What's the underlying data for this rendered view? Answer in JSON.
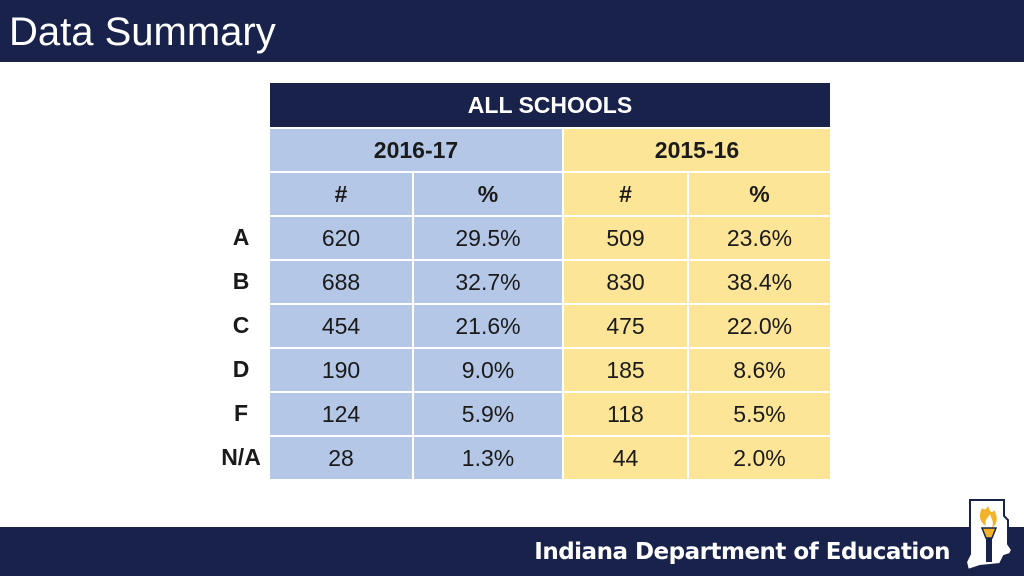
{
  "slide": {
    "title": "Data Summary"
  },
  "table": {
    "header": "ALL SCHOOLS",
    "years": [
      "2016-17",
      "2015-16"
    ],
    "subheaders": [
      "#",
      "%",
      "#",
      "%"
    ],
    "rows": [
      {
        "grade": "A",
        "values": [
          "620",
          "29.5%",
          "509",
          "23.6%"
        ]
      },
      {
        "grade": "B",
        "values": [
          "688",
          "32.7%",
          "830",
          "38.4%"
        ]
      },
      {
        "grade": "C",
        "values": [
          "454",
          "21.6%",
          "475",
          "22.0%"
        ]
      },
      {
        "grade": "D",
        "values": [
          "190",
          "9.0%",
          "185",
          "8.6%"
        ]
      },
      {
        "grade": "F",
        "values": [
          "124",
          "5.9%",
          "118",
          "5.5%"
        ]
      },
      {
        "grade": "N/A",
        "values": [
          "28",
          "1.3%",
          "44",
          "2.0%"
        ]
      }
    ]
  },
  "footer": {
    "organization": "Indiana Department of Education",
    "logo_icon": "indiana-torch-icon"
  },
  "colors": {
    "navy": "#18224a",
    "year1_fill": "#b4c7e7",
    "year2_fill": "#fde597"
  }
}
